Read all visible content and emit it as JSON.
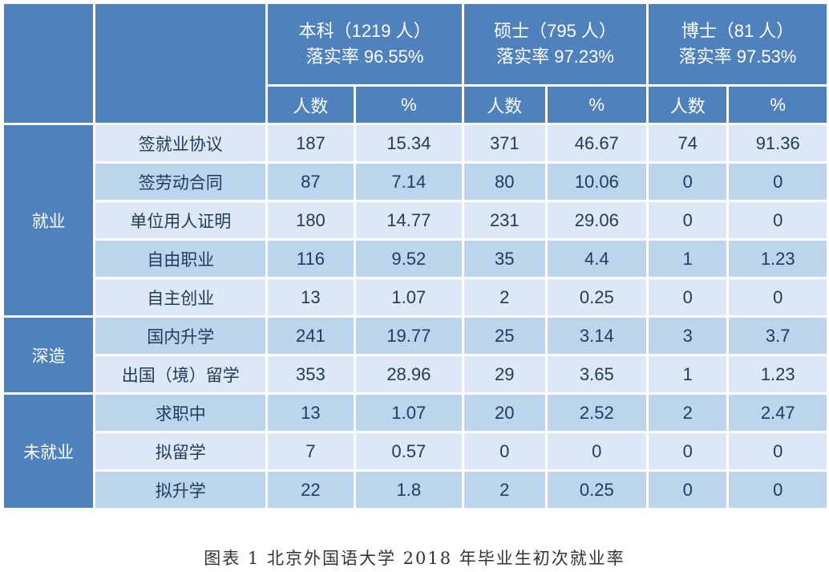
{
  "table": {
    "groups": [
      {
        "title": "本科（1219 人）",
        "rate": "落实率 96.55%"
      },
      {
        "title": "硕士（795 人）",
        "rate": "落实率 97.23%"
      },
      {
        "title": "博士（81 人）",
        "rate": "落实率 97.53%"
      }
    ],
    "sub_headers": [
      "人数",
      "%",
      "人数",
      "%",
      "人数",
      "%"
    ],
    "categories": [
      {
        "name": "就业",
        "rows": 5
      },
      {
        "name": "深造",
        "rows": 2
      },
      {
        "name": "未就业",
        "rows": 3
      }
    ],
    "rows": [
      {
        "label": "签就业协议",
        "values": [
          "187",
          "15.34",
          "371",
          "46.67",
          "74",
          "91.36"
        ]
      },
      {
        "label": "签劳动合同",
        "values": [
          "87",
          "7.14",
          "80",
          "10.06",
          "0",
          "0"
        ]
      },
      {
        "label": "单位用人证明",
        "values": [
          "180",
          "14.77",
          "231",
          "29.06",
          "0",
          "0"
        ]
      },
      {
        "label": "自由职业",
        "values": [
          "116",
          "9.52",
          "35",
          "4.4",
          "1",
          "1.23"
        ]
      },
      {
        "label": "自主创业",
        "values": [
          "13",
          "1.07",
          "2",
          "0.25",
          "0",
          "0"
        ]
      },
      {
        "label": "国内升学",
        "values": [
          "241",
          "19.77",
          "25",
          "3.14",
          "3",
          "3.7"
        ]
      },
      {
        "label": "出国（境）留学",
        "values": [
          "353",
          "28.96",
          "29",
          "3.65",
          "1",
          "1.23"
        ]
      },
      {
        "label": "求职中",
        "values": [
          "13",
          "1.07",
          "20",
          "2.52",
          "2",
          "2.47"
        ]
      },
      {
        "label": "拟留学",
        "values": [
          "7",
          "0.57",
          "0",
          "0",
          "0",
          "0"
        ]
      },
      {
        "label": "拟升学",
        "values": [
          "22",
          "1.8",
          "2",
          "0.25",
          "0",
          "0"
        ]
      }
    ]
  },
  "caption": "图表 1 北京外国语大学 2018 年毕业生初次就业率",
  "colors": {
    "header": "#4f81bd",
    "row_light": "#dce8f5",
    "row_dark": "#bcd5ec",
    "text": "#1f3b5c"
  }
}
